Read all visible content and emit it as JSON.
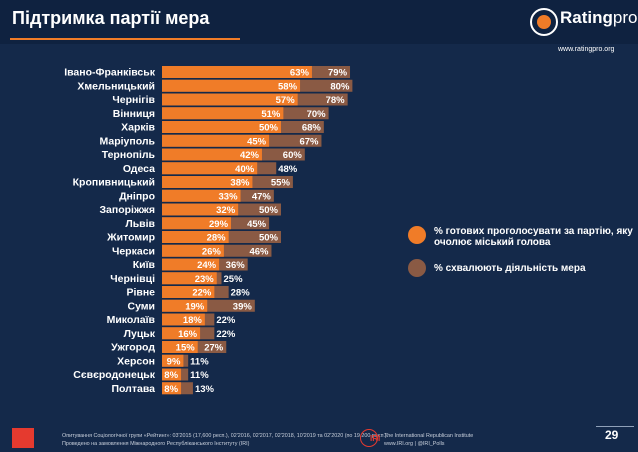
{
  "page": {
    "title": "Підтримка партії мера",
    "page_number": "29"
  },
  "logo": {
    "word_main": "Rating",
    "word_pro": "pro",
    "url": "www.ratingpro.org"
  },
  "legend": [
    {
      "label": "% готових проголосувати за партію, яку очолює міський голова",
      "color": "#f07c28"
    },
    {
      "label": "% схвалюють діяльність мера",
      "color": "#8a5a44"
    }
  ],
  "footer": {
    "line1": "Опитування Соціологічної групи «Рейтинг»: 03'2015 (17,600 респ.), 02'2016, 02'2017, 02'2018, 10'2019 та 02'2020 (по 19,200 респ.).",
    "line2": "Проведено на замовлення Міжнародного Республіканського Інституту (IRI)",
    "iri_mark": "IRI",
    "iri_line1": "The International Republican Institute",
    "iri_line2": "www.IRI.org | @IRI_Polls"
  },
  "colors": {
    "background": "#14294a",
    "vote_bar": "#f07c28",
    "approve_bar": "#8a5a44"
  },
  "chart_data": {
    "type": "bar",
    "orientation": "horizontal",
    "categories": [
      "Івано-Франківськ",
      "Хмельницький",
      "Чернігів",
      "Вінниця",
      "Харків",
      "Маріуполь",
      "Тернопіль",
      "Одеса",
      "Кропивницький",
      "Дніпро",
      "Запоріжжя",
      "Львів",
      "Житомир",
      "Черкаси",
      "Київ",
      "Чернівці",
      "Рівне",
      "Суми",
      "Миколаїв",
      "Луцьк",
      "Ужгород",
      "Херсон",
      "Сєвєродонецьк",
      "Полтава"
    ],
    "series": [
      {
        "name": "% готових проголосувати за партію, яку очолює міський голова",
        "values": [
          63,
          58,
          57,
          51,
          50,
          45,
          42,
          40,
          38,
          33,
          32,
          29,
          28,
          26,
          24,
          23,
          22,
          19,
          18,
          16,
          15,
          9,
          8,
          8
        ],
        "labels": [
          "63%",
          "58%",
          "57%",
          "51%",
          "50%",
          "45%",
          "42%",
          "40%",
          "38%",
          "33%",
          "32%",
          "29%",
          "28%",
          "26%",
          "24%",
          "23%",
          "22%",
          "19%",
          "18%",
          "16%",
          "15%",
          "9%",
          "8%",
          "8%"
        ]
      },
      {
        "name": "% схвалюють діяльність мера",
        "values": [
          79,
          80,
          78,
          70,
          68,
          67,
          60,
          48,
          55,
          47,
          50,
          45,
          50,
          46,
          36,
          25,
          28,
          39,
          22,
          22,
          27,
          11,
          11,
          13
        ],
        "labels": [
          "79%",
          "80%",
          "78%",
          "70%",
          "68%",
          "67%",
          "60%",
          "48%",
          "55%",
          "47%",
          "50%",
          "45%",
          "50%",
          "46%",
          "36%",
          "25%",
          "28%",
          "39%",
          "22%",
          "22%",
          "27%",
          "11%",
          "11%",
          "13%"
        ]
      }
    ],
    "xlim": [
      0,
      100
    ],
    "grid": false,
    "legend_position": "right"
  }
}
